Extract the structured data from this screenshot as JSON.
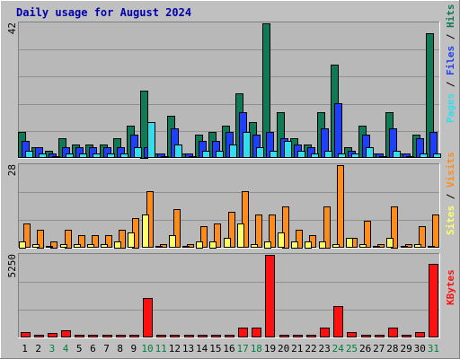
{
  "title": "Daily usage for August 2024",
  "colors": {
    "background": "#c0c0c0",
    "plot_bg": "#b8b8b8",
    "hits": "#0f7a55",
    "files": "#1f3fff",
    "pages": "#33ddee",
    "visits": "#ff8c1a",
    "sites": "#ffff66",
    "kbytes": "#ff1010",
    "weekend_label": "#008040",
    "weekday_label": "#000000",
    "title": "#0000aa"
  },
  "chart_data": [
    {
      "type": "bar",
      "panel": "top",
      "ymax_label": "42",
      "ylim": [
        0,
        42
      ],
      "right_labels": [
        "Pages",
        "Files",
        "Hits"
      ],
      "categories": [
        "1",
        "2",
        "3",
        "4",
        "5",
        "6",
        "7",
        "8",
        "9",
        "10",
        "11",
        "12",
        "13",
        "14",
        "15",
        "16",
        "17",
        "18",
        "19",
        "20",
        "21",
        "22",
        "23",
        "24",
        "25",
        "26",
        "27",
        "28",
        "29",
        "30",
        "31"
      ],
      "series": [
        {
          "name": "Hits",
          "values": [
            8,
            3,
            2,
            6,
            4,
            4,
            4,
            6,
            10,
            21,
            1,
            13,
            1,
            7,
            8,
            10,
            20,
            11,
            42,
            14,
            6,
            4,
            14,
            29,
            3,
            10,
            1,
            14,
            1,
            7,
            39
          ]
        },
        {
          "name": "Files",
          "values": [
            5,
            3,
            1,
            3,
            3,
            3,
            3,
            3,
            7,
            3,
            1,
            9,
            1,
            5,
            5,
            8,
            14,
            7,
            8,
            6,
            4,
            3,
            9,
            17,
            2,
            7,
            1,
            9,
            1,
            6,
            8
          ]
        },
        {
          "name": "Pages",
          "values": [
            2,
            1,
            0,
            1,
            1,
            1,
            1,
            1,
            3,
            11,
            0,
            4,
            0,
            2,
            2,
            4,
            8,
            3,
            2,
            5,
            2,
            1,
            2,
            1,
            1,
            3,
            0,
            2,
            0,
            1,
            1
          ]
        }
      ]
    },
    {
      "type": "bar",
      "panel": "middle",
      "ymax_label": "28",
      "ylim": [
        0,
        28
      ],
      "right_labels": [
        "Sites",
        "Visits"
      ],
      "categories": [
        "1",
        "2",
        "3",
        "4",
        "5",
        "6",
        "7",
        "8",
        "9",
        "10",
        "11",
        "12",
        "13",
        "14",
        "15",
        "16",
        "17",
        "18",
        "19",
        "20",
        "21",
        "22",
        "23",
        "24",
        "25",
        "26",
        "27",
        "28",
        "29",
        "30",
        "31"
      ],
      "series": [
        {
          "name": "Visits",
          "values": [
            8,
            6,
            2,
            6,
            4,
            4,
            4,
            6,
            10,
            19,
            1,
            13,
            1,
            7,
            8,
            12,
            19,
            11,
            11,
            14,
            6,
            4,
            14,
            28,
            3,
            9,
            1,
            14,
            1,
            7,
            11
          ]
        },
        {
          "name": "Sites",
          "values": [
            2,
            1,
            0,
            1,
            1,
            1,
            1,
            2,
            5,
            11,
            0,
            4,
            0,
            2,
            2,
            3,
            8,
            1,
            2,
            5,
            2,
            2,
            2,
            1,
            3,
            1,
            0,
            3,
            0,
            1,
            0
          ]
        }
      ]
    },
    {
      "type": "bar",
      "panel": "bottom",
      "ymax_label": "5250",
      "ylim": [
        0,
        5250
      ],
      "right_labels": [
        "KBytes"
      ],
      "categories": [
        "1",
        "2",
        "3",
        "4",
        "5",
        "6",
        "7",
        "8",
        "9",
        "10",
        "11",
        "12",
        "13",
        "14",
        "15",
        "16",
        "17",
        "18",
        "19",
        "20",
        "21",
        "22",
        "23",
        "24",
        "25",
        "26",
        "27",
        "28",
        "29",
        "30",
        "31"
      ],
      "series": [
        {
          "name": "KBytes",
          "values": [
            260,
            60,
            240,
            400,
            30,
            30,
            30,
            30,
            30,
            2480,
            30,
            30,
            30,
            30,
            30,
            30,
            600,
            600,
            5250,
            30,
            30,
            30,
            600,
            1950,
            260,
            30,
            30,
            600,
            30,
            300,
            4700
          ]
        }
      ]
    }
  ],
  "weekend_days": [
    "3",
    "4",
    "10",
    "11",
    "17",
    "18",
    "24",
    "25",
    "31"
  ]
}
